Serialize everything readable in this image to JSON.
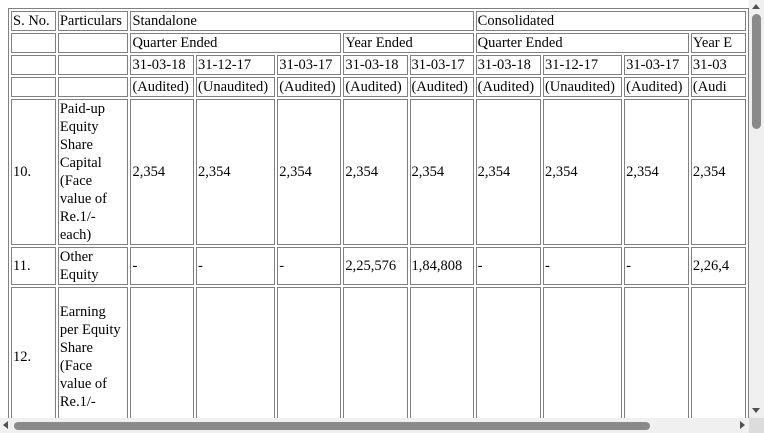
{
  "header": {
    "sno": "S. No.",
    "particulars": "Particulars",
    "standalone": "Standalone",
    "consolidated": "Consolidated",
    "quarter_ended": "Quarter Ended",
    "year_ended": "Year Ended",
    "year_ended_cut": "Year E",
    "dates_standalone": [
      "31-03-18",
      "31-12-17",
      "31-03-17",
      "31-03-18",
      "31-03-17"
    ],
    "dates_consolidated": [
      "31-03-18",
      "31-12-17",
      "31-03-17",
      "31-03"
    ],
    "audit_standalone": [
      "(Audited)",
      "(Unaudited)",
      "(Audited)",
      "(Audited)",
      "(Audited)"
    ],
    "audit_consolidated": [
      "(Audited)",
      "(Unaudited)",
      "(Audited)",
      "(Audi"
    ]
  },
  "rows": [
    {
      "sno": "10.",
      "particular": "Paid-up Equity Share Capital (Face value of Re.1/- each)",
      "values": [
        "2,354",
        "2,354",
        "2,354",
        "2,354",
        "2,354",
        "2,354",
        "2,354",
        "2,354",
        "2,354"
      ]
    },
    {
      "sno": "11.",
      "particular": "Other Equity",
      "values": [
        "-",
        "-",
        "-",
        "2,25,576",
        "1,84,808",
        "-",
        "-",
        "-",
        "2,26,4"
      ]
    },
    {
      "sno": "12.",
      "particular": "Earning per Equity Share (Face value of Re.1/-",
      "values": [
        "",
        "",
        "",
        "",
        "",
        "",
        "",
        "",
        ""
      ]
    }
  ]
}
